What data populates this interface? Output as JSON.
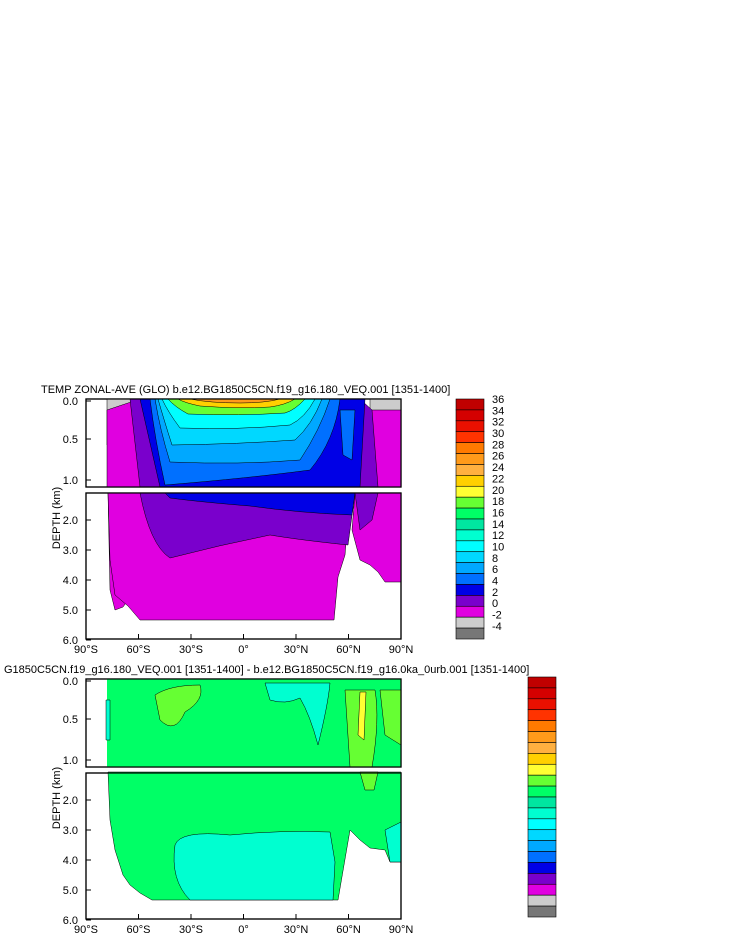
{
  "chart_data": [
    {
      "type": "contour",
      "title": "TEMP ZONAL-AVE (GLO) b.e12.BG1850C5CN.f19_g16.180_VEQ.001 [1351-1400]",
      "ylabel": "DEPTH (km)",
      "x_ticks": [
        "90°S",
        "60°S",
        "30°S",
        "0°",
        "30°N",
        "60°N",
        "90°N"
      ],
      "y_ticks_upper": [
        "0.0",
        "0.5",
        "1.0"
      ],
      "y_ticks_lower": [
        "2.0",
        "3.0",
        "4.0",
        "5.0",
        "6.0"
      ],
      "xlim": [
        -90,
        90
      ],
      "ylim_upper": [
        0.0,
        1.1
      ],
      "ylim_lower": [
        1.1,
        6.0
      ],
      "colorbar": {
        "labels": [
          "36",
          "34",
          "32",
          "30",
          "28",
          "26",
          "24",
          "22",
          "20",
          "18",
          "16",
          "14",
          "12",
          "10",
          "8",
          "6",
          "4",
          "2",
          "0",
          "-2",
          "-4"
        ],
        "colors": [
          "#c00000",
          "#d40000",
          "#ea1000",
          "#ff3300",
          "#ff7a00",
          "#ff9a1a",
          "#ffb040",
          "#ffd000",
          "#ffff33",
          "#66ff33",
          "#00ff66",
          "#00e6a0",
          "#00ffd0",
          "#00ffff",
          "#00d8ff",
          "#00a8ff",
          "#0070ff",
          "#0000e6",
          "#7a00cc",
          "#e000e0",
          "#cccccc",
          "#777777"
        ]
      },
      "zones": {
        "surface_max": 28,
        "thermocline_range": [
          8,
          26
        ],
        "intermediate": 4,
        "deep": 2,
        "polar_surface": 0
      }
    },
    {
      "type": "contour",
      "title": "G1850C5CN.f19_g16.180_VEQ.001 [1351-1400] - b.e12.BG1850C5CN.f19_g16.0ka_0urb.001 [1351-1400]",
      "ylabel": "DEPTH (km)",
      "x_ticks": [
        "90°S",
        "60°S",
        "30°S",
        "0°",
        "30°N",
        "60°N",
        "90°N"
      ],
      "y_ticks_upper": [
        "0.0",
        "0.5",
        "1.0"
      ],
      "y_ticks_lower": [
        "2.0",
        "3.0",
        "4.0",
        "5.0",
        "6.0"
      ],
      "xlim": [
        -90,
        90
      ],
      "ylim_upper": [
        0.0,
        1.1
      ],
      "ylim_lower": [
        1.1,
        6.0
      ],
      "colorbar": {
        "labels": [],
        "colors": [
          "#c00000",
          "#d40000",
          "#ea1000",
          "#ff3300",
          "#ff7a00",
          "#ff9a1a",
          "#ffb040",
          "#ffd000",
          "#ffff33",
          "#66ff33",
          "#00ff66",
          "#00e6a0",
          "#00ffd0",
          "#00ffff",
          "#00d8ff",
          "#00a8ff",
          "#0070ff",
          "#0000e6",
          "#7a00cc",
          "#e000e0",
          "#cccccc",
          "#777777"
        ]
      }
    }
  ]
}
